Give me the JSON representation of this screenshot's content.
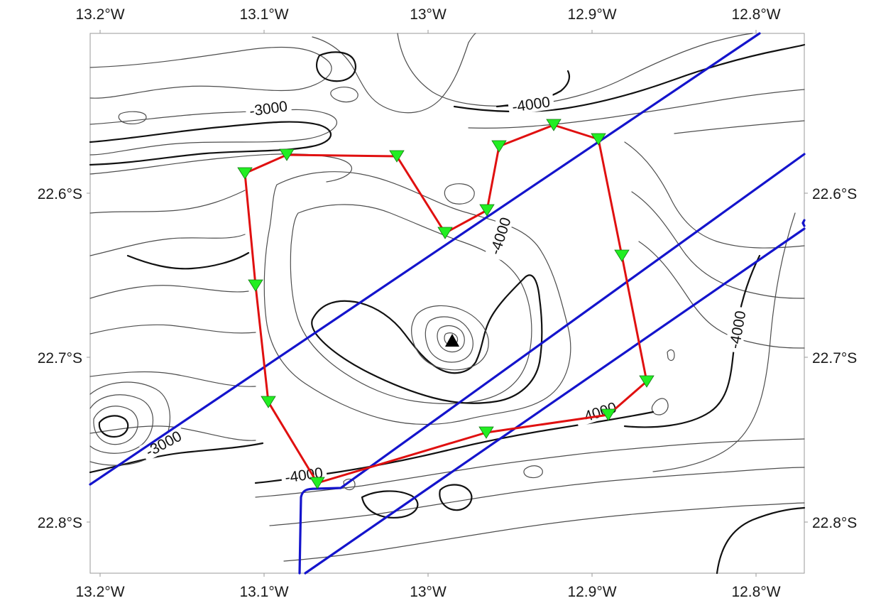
{
  "map": {
    "x_ticks": [
      "13.2°W",
      "13.1°W",
      "13°W",
      "12.9°W",
      "12.8°W"
    ],
    "y_ticks": [
      "22.6°S",
      "22.7°S",
      "22.8°S"
    ],
    "contour_labels": [
      "-3000",
      "-4000",
      "-4000",
      "-4000",
      "-3000",
      "-4000",
      "-4000"
    ],
    "colors": {
      "survey_line": "#e01010",
      "track_line": "#1414cc",
      "station_marker": "#22ee22",
      "summit_marker": "#000000",
      "contour_major": "#111111",
      "contour_minor": "#4d4d4d"
    },
    "icons": {
      "station": "green-triangle-down",
      "summit": "black-triangle-up"
    }
  }
}
